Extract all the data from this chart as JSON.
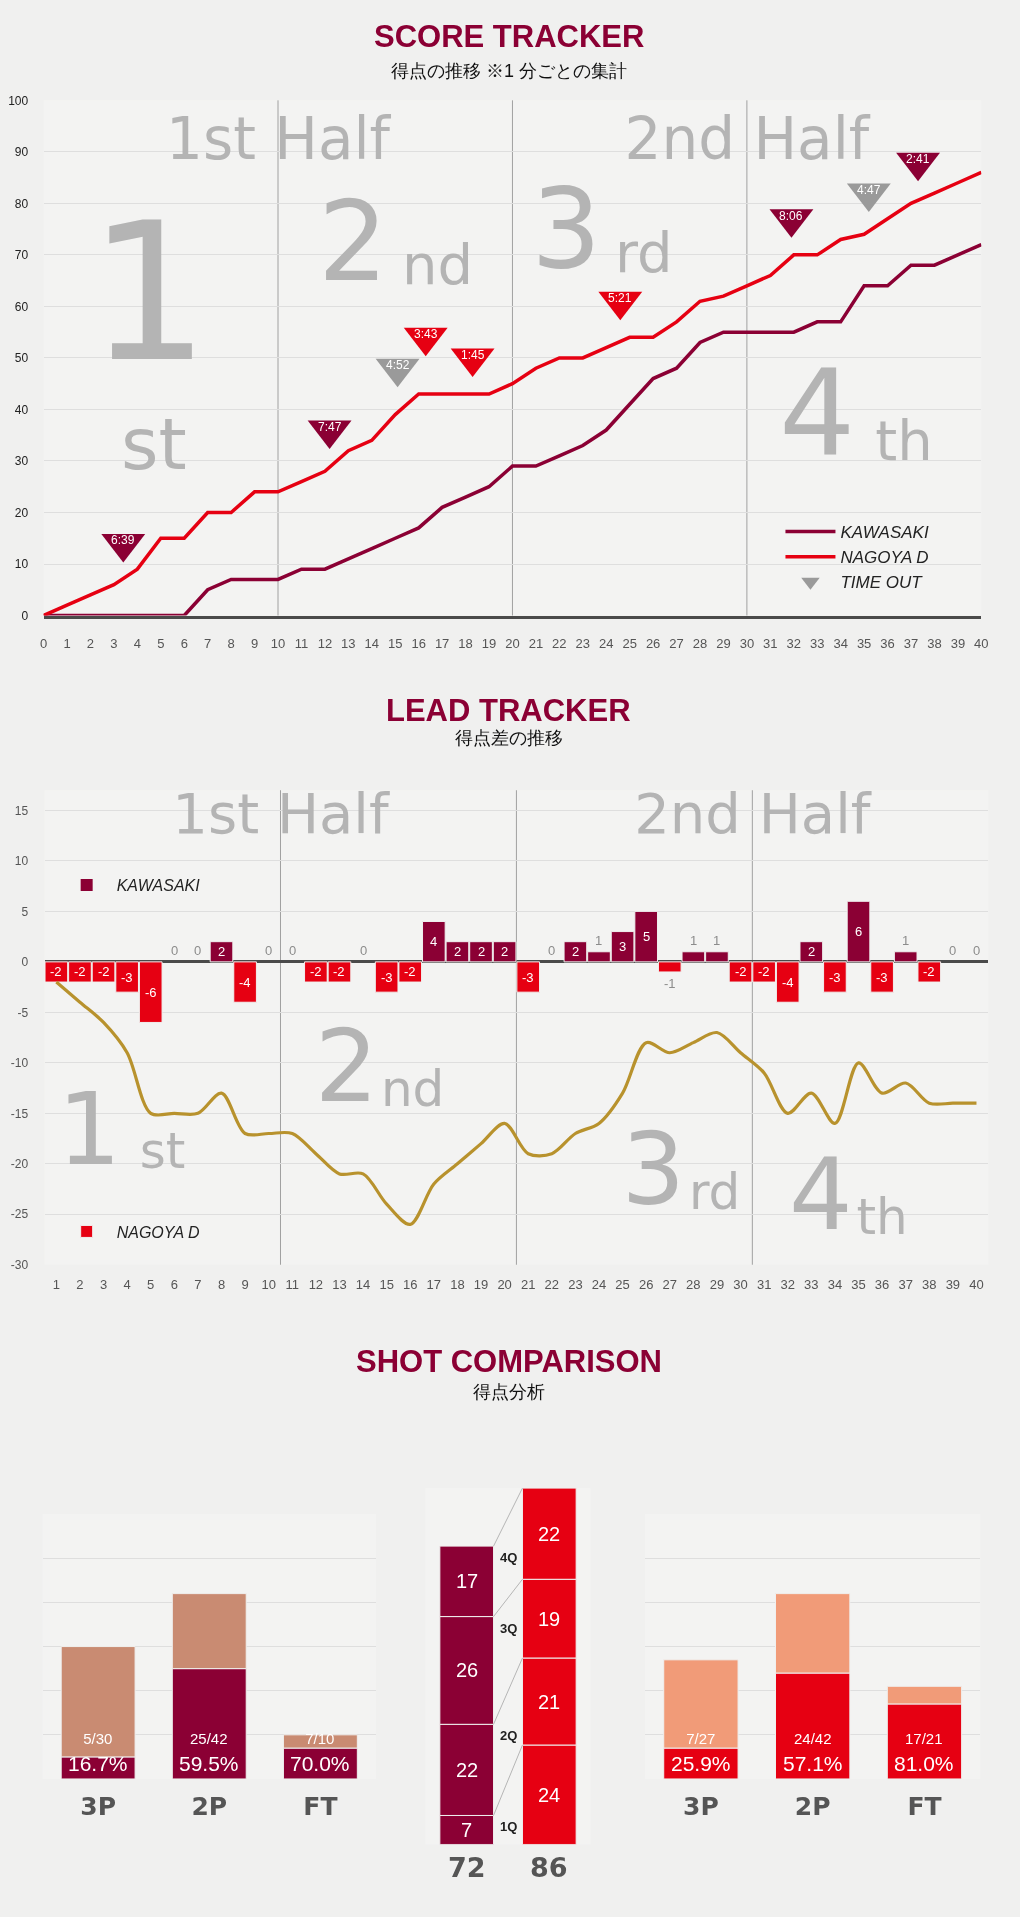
{
  "chart_data": [
    {
      "type": "line",
      "title": "SCORE TRACKER",
      "subtitle": "得点の推移 ※1 分ごとの集計",
      "x": [
        0,
        1,
        2,
        3,
        4,
        5,
        6,
        7,
        8,
        9,
        10,
        11,
        12,
        13,
        14,
        15,
        16,
        17,
        18,
        19,
        20,
        21,
        22,
        23,
        24,
        25,
        26,
        27,
        28,
        29,
        30,
        31,
        32,
        33,
        34,
        35,
        36,
        37,
        38,
        39,
        40
      ],
      "xlim": [
        0,
        40
      ],
      "xticks": [
        0,
        1,
        2,
        3,
        4,
        5,
        6,
        7,
        8,
        9,
        10,
        11,
        12,
        13,
        14,
        15,
        16,
        17,
        18,
        19,
        20,
        21,
        22,
        23,
        24,
        25,
        26,
        27,
        28,
        29,
        30,
        31,
        32,
        33,
        34,
        35,
        36,
        37,
        38,
        39,
        40
      ],
      "ylim": [
        0,
        100
      ],
      "yticks": [
        0,
        10,
        20,
        30,
        40,
        50,
        60,
        70,
        80,
        90,
        100
      ],
      "grid": "y",
      "legend": "bottom right",
      "series": [
        {
          "name": "KAWASAKI",
          "color": "#8b0034",
          "values": [
            0,
            0,
            0,
            0,
            0,
            0,
            0,
            5,
            7,
            7,
            7,
            9,
            9,
            11,
            13,
            15,
            17,
            21,
            23,
            25,
            29,
            29,
            31,
            33,
            36,
            41,
            46,
            48,
            53,
            55,
            55,
            55,
            55,
            57,
            57,
            64,
            64,
            68,
            68,
            70,
            72
          ]
        },
        {
          "name": "NAGOYA D",
          "color": "#e60012",
          "values": [
            0,
            2,
            4,
            6,
            9,
            15,
            15,
            20,
            20,
            24,
            24,
            26,
            28,
            32,
            34,
            39,
            43,
            43,
            43,
            43,
            45,
            48,
            50,
            50,
            52,
            54,
            54,
            57,
            61,
            62,
            64,
            66,
            70,
            70,
            73,
            74,
            77,
            80,
            82,
            84,
            86
          ]
        },
        {
          "name": "TIME OUT",
          "type": "scatter",
          "marker": "triangle",
          "color": "#9a9a9a",
          "x": [
            3.4,
            12.2,
            15.1,
            16.3,
            18.3,
            24.6,
            31.9,
            35.2,
            37.3
          ],
          "values": [
            14,
            36,
            48,
            54,
            50,
            61,
            77,
            82,
            88
          ],
          "colors": [
            "#8b0034",
            "#8b0034",
            "#9a9a9a",
            "#e60012",
            "#e60012",
            "#e60012",
            "#8b0034",
            "#9a9a9a",
            "#8b0034"
          ]
        }
      ],
      "ref_lines": [
        {
          "axis": "x",
          "value": 10,
          "color": "#a0a0a0"
        },
        {
          "axis": "x",
          "value": 20,
          "color": "#a0a0a0"
        },
        {
          "axis": "x",
          "value": 30,
          "color": "#a0a0a0"
        }
      ],
      "annotations": [
        "1st Half",
        "2nd Half",
        "1",
        "st",
        "2",
        "nd",
        "3",
        "rd",
        "4",
        "th",
        {
          "text": "6:39",
          "x": 3.4,
          "y": 14
        },
        {
          "text": "7:47",
          "x": 12.2,
          "y": 36
        },
        {
          "text": "4:52",
          "x": 15.1,
          "y": 48
        },
        {
          "text": "3:43",
          "x": 16.3,
          "y": 54
        },
        {
          "text": "1:45",
          "x": 18.3,
          "y": 50
        },
        {
          "text": "5:21",
          "x": 24.6,
          "y": 61
        },
        {
          "text": "8:06",
          "x": 31.9,
          "y": 77
        },
        {
          "text": "4:47",
          "x": 35.2,
          "y": 82
        },
        {
          "text": "2:41",
          "x": 37.3,
          "y": 88
        }
      ]
    },
    {
      "type": "bar",
      "title": "LEAD TRACKER",
      "subtitle": "得点差の推移",
      "stacked": true,
      "x": [
        1,
        2,
        3,
        4,
        5,
        6,
        7,
        8,
        9,
        10,
        11,
        12,
        13,
        14,
        15,
        16,
        17,
        18,
        19,
        20,
        21,
        22,
        23,
        24,
        25,
        26,
        27,
        28,
        29,
        30,
        31,
        32,
        33,
        34,
        35,
        36,
        37,
        38,
        39,
        40
      ],
      "xlim": [
        0.5,
        40.5
      ],
      "xticks": [
        1,
        2,
        3,
        4,
        5,
        6,
        7,
        8,
        9,
        10,
        11,
        12,
        13,
        14,
        15,
        16,
        17,
        18,
        19,
        20,
        21,
        22,
        23,
        24,
        25,
        26,
        27,
        28,
        29,
        30,
        31,
        32,
        33,
        34,
        35,
        36,
        37,
        38,
        39,
        40
      ],
      "ylim": [
        -30,
        17
      ],
      "yticks": [
        -30,
        -25,
        -20,
        -15,
        -10,
        -5,
        0,
        5,
        10,
        15
      ],
      "grid": "y",
      "legend": "left",
      "series": [
        {
          "name": "KAWASAKI",
          "color": "#8b0034",
          "values": [
            null,
            null,
            null,
            null,
            null,
            0,
            0,
            2,
            null,
            0,
            0,
            null,
            null,
            0,
            null,
            null,
            4,
            2,
            2,
            2,
            null,
            0,
            2,
            1,
            3,
            5,
            null,
            1,
            1,
            null,
            null,
            null,
            2,
            null,
            6,
            null,
            1,
            null,
            0,
            0
          ],
          "value_labels": [
            null,
            null,
            null,
            null,
            null,
            "0",
            "0",
            "2",
            null,
            "0",
            "0",
            null,
            null,
            "0",
            null,
            null,
            "4",
            "2",
            "2",
            "2",
            null,
            "0",
            "2",
            "1",
            "3",
            "5",
            null,
            "1",
            "1",
            null,
            null,
            null,
            "2",
            null,
            "6",
            null,
            "1",
            null,
            "0",
            "0"
          ]
        },
        {
          "name": "NAGOYA D",
          "color": "#e60012",
          "values": [
            -2,
            -2,
            -2,
            -3,
            -6,
            null,
            null,
            null,
            -4,
            null,
            null,
            -2,
            -2,
            null,
            -3,
            -2,
            null,
            null,
            null,
            null,
            -3,
            null,
            null,
            null,
            null,
            null,
            -1,
            null,
            null,
            -2,
            -2,
            -4,
            null,
            -3,
            null,
            -3,
            null,
            -2,
            null,
            null
          ],
          "value_labels": [
            "-2",
            "-2",
            "-2",
            "-3",
            "-6",
            null,
            null,
            null,
            "-4",
            null,
            null,
            "-2",
            "-2",
            null,
            "-3",
            "-2",
            null,
            null,
            null,
            null,
            "-3",
            null,
            null,
            null,
            null,
            null,
            "-1",
            null,
            null,
            "-2",
            "-2",
            "-4",
            null,
            "-3",
            null,
            "-3",
            null,
            "-2",
            null,
            null
          ]
        },
        {
          "type": "line",
          "color": "#b8922d",
          "values": [
            -2,
            -4,
            -6,
            -9,
            -15,
            -15,
            -15,
            -13,
            -17,
            -17,
            -17,
            -19,
            -21,
            -21,
            -24,
            -26,
            -22,
            -20,
            -18,
            -16,
            -19,
            -19,
            -17,
            -16,
            -13,
            -8,
            -9,
            -8,
            -7,
            -9,
            -11,
            -15,
            -13,
            -16,
            -10,
            -13,
            -12,
            -14,
            -14,
            -14
          ]
        }
      ],
      "ref_lines": [
        {
          "axis": "x",
          "value": 10.5,
          "color": "#a0a0a0"
        },
        {
          "axis": "x",
          "value": 20.5,
          "color": "#a0a0a0"
        },
        {
          "axis": "x",
          "value": 30.5,
          "color": "#a0a0a0"
        }
      ],
      "annotations": [
        "1st Half",
        "2nd Half",
        "1",
        "st",
        "2",
        "nd",
        "3",
        "rd",
        "4",
        "th"
      ]
    },
    {
      "type": "bar",
      "categories": [
        "3P",
        "2P",
        "FT"
      ],
      "stacked": true,
      "grid": "y",
      "tick_labels": "x",
      "series": [
        {
          "color": "#8b0034",
          "values": [
            5,
            25,
            7
          ],
          "value_labels": [
            "5/30\n16.7%",
            "25/42\n59.5%",
            "7/10\n70.0%"
          ]
        },
        {
          "color": "#c98b72",
          "values": [
            25,
            17,
            3
          ]
        }
      ]
    },
    {
      "type": "bar",
      "title": "SHOT COMPARISON",
      "subtitle": "得点分析",
      "categories": [
        null,
        null
      ],
      "stacked": true,
      "ylim": [
        0,
        86
      ],
      "tick_labels": false,
      "data_labels": true,
      "totals": [
        "72",
        "86"
      ],
      "series": [
        {
          "name": "1Q",
          "colors": [
            "#8b0034",
            "#e60012"
          ],
          "values": [
            7,
            24
          ]
        },
        {
          "name": "2Q",
          "colors": [
            "#8b0034",
            "#e60012"
          ],
          "values": [
            22,
            21
          ]
        },
        {
          "name": "3Q",
          "colors": [
            "#8b0034",
            "#e60012"
          ],
          "values": [
            26,
            19
          ]
        },
        {
          "name": "4Q",
          "colors": [
            "#8b0034",
            "#e60012"
          ],
          "values": [
            17,
            22
          ]
        }
      ]
    },
    {
      "type": "bar",
      "categories": [
        "3P",
        "2P",
        "FT"
      ],
      "stacked": true,
      "grid": "y",
      "tick_labels": "x",
      "series": [
        {
          "color": "#e60012",
          "values": [
            7,
            24,
            17
          ],
          "value_labels": [
            "7/27\n25.9%",
            "24/42\n57.1%",
            "17/21\n81.0%"
          ]
        },
        {
          "color": "#f19b78",
          "values": [
            20,
            18,
            4
          ]
        }
      ]
    }
  ]
}
